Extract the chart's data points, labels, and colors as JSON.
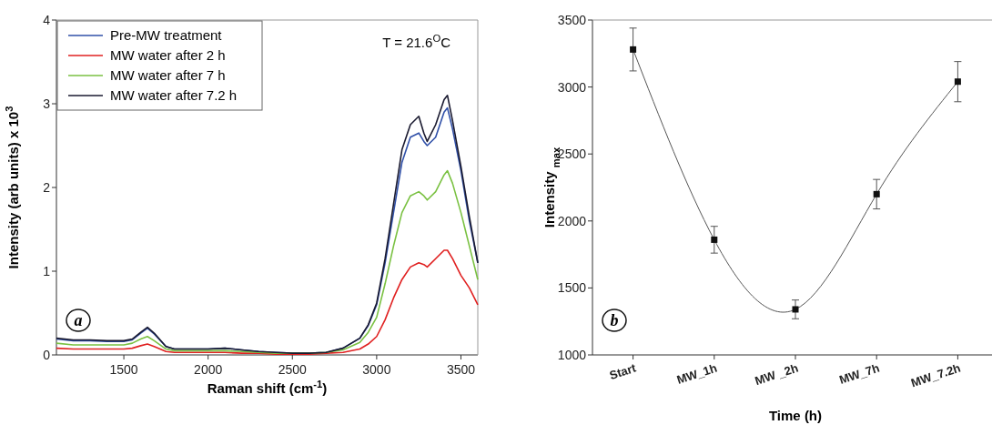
{
  "chart_data": [
    {
      "type": "line",
      "xlabel": "Raman shift (cm$^{-1}$)",
      "ylabel": "Intensity (arb units) x 10$^{3}$",
      "annotations": [
        "T = 21.6$^{O}$C",
        "a"
      ],
      "x": [
        1100,
        1200,
        1300,
        1400,
        1500,
        1550,
        1600,
        1640,
        1680,
        1750,
        1800,
        1900,
        2000,
        2100,
        2200,
        2300,
        2400,
        2500,
        2600,
        2700,
        2800,
        2900,
        2950,
        3000,
        3050,
        3100,
        3150,
        3200,
        3250,
        3280,
        3300,
        3350,
        3400,
        3420,
        3450,
        3500,
        3550,
        3600
      ],
      "xlim": [
        1100,
        3600
      ],
      "xticks": [
        1500,
        2000,
        2500,
        3000,
        3500
      ],
      "ylim": [
        0,
        4
      ],
      "yticks": [
        0,
        1,
        2,
        3,
        4
      ],
      "legend": "top left",
      "marker": "none",
      "line_style": "solid",
      "series": [
        {
          "name": "Pre-MW treatment",
          "color": "#3050a8",
          "values": [
            0.19,
            0.17,
            0.17,
            0.16,
            0.16,
            0.18,
            0.26,
            0.32,
            0.25,
            0.1,
            0.07,
            0.07,
            0.07,
            0.08,
            0.06,
            0.04,
            0.03,
            0.02,
            0.02,
            0.03,
            0.08,
            0.2,
            0.35,
            0.6,
            1.1,
            1.7,
            2.3,
            2.6,
            2.65,
            2.55,
            2.5,
            2.6,
            2.9,
            2.95,
            2.7,
            2.2,
            1.6,
            1.1
          ]
        },
        {
          "name": "MW water after 2 h",
          "color": "#e02020",
          "values": [
            0.08,
            0.07,
            0.07,
            0.07,
            0.07,
            0.08,
            0.11,
            0.13,
            0.1,
            0.04,
            0.03,
            0.03,
            0.03,
            0.03,
            0.02,
            0.02,
            0.01,
            0.01,
            0.01,
            0.02,
            0.03,
            0.07,
            0.13,
            0.22,
            0.42,
            0.68,
            0.9,
            1.05,
            1.1,
            1.08,
            1.05,
            1.15,
            1.25,
            1.25,
            1.15,
            0.95,
            0.8,
            0.6
          ]
        },
        {
          "name": "MW water after 7 h",
          "color": "#7ac142",
          "values": [
            0.14,
            0.12,
            0.12,
            0.12,
            0.12,
            0.14,
            0.19,
            0.22,
            0.17,
            0.07,
            0.05,
            0.05,
            0.05,
            0.05,
            0.04,
            0.03,
            0.02,
            0.02,
            0.02,
            0.03,
            0.06,
            0.15,
            0.27,
            0.45,
            0.85,
            1.3,
            1.7,
            1.9,
            1.95,
            1.9,
            1.85,
            1.95,
            2.15,
            2.2,
            2.05,
            1.7,
            1.3,
            0.9
          ]
        },
        {
          "name": "MW water after 7.2 h",
          "color": "#1a1a30",
          "values": [
            0.2,
            0.18,
            0.18,
            0.17,
            0.17,
            0.19,
            0.27,
            0.33,
            0.26,
            0.1,
            0.07,
            0.07,
            0.07,
            0.08,
            0.06,
            0.04,
            0.03,
            0.02,
            0.02,
            0.03,
            0.08,
            0.2,
            0.36,
            0.62,
            1.15,
            1.8,
            2.45,
            2.75,
            2.85,
            2.65,
            2.55,
            2.75,
            3.05,
            3.1,
            2.8,
            2.25,
            1.65,
            1.1
          ]
        }
      ]
    },
    {
      "type": "line",
      "xlabel": "Time (h)",
      "ylabel": "Intensity $_{max}$",
      "annotations": [
        "b"
      ],
      "categories": [
        "Start",
        "MW_1h",
        "MW _2h",
        "MW_7h",
        "MW_7.2h"
      ],
      "ylim": [
        1000,
        3500
      ],
      "yticks": [
        1000,
        1500,
        2000,
        2500,
        3000,
        3500
      ],
      "marker": "square",
      "line_style": "solid",
      "series": [
        {
          "color": "#111111",
          "values": [
            3280,
            1860,
            1340,
            2200,
            3040
          ],
          "errors": [
            160,
            100,
            70,
            110,
            150
          ]
        }
      ]
    }
  ]
}
